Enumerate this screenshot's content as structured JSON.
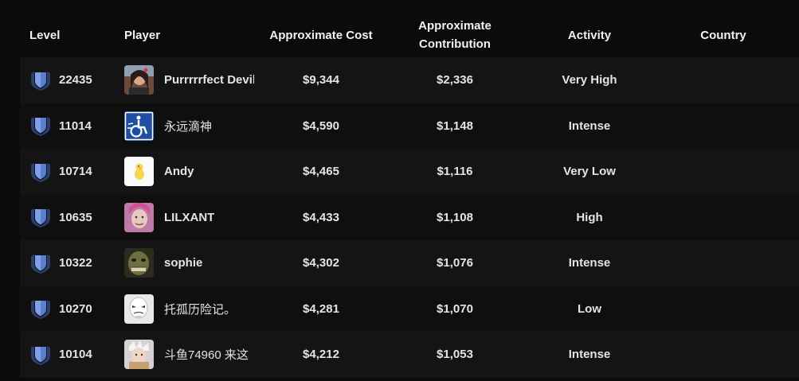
{
  "headers": {
    "level": "Level",
    "player": "Player",
    "cost": "Approximate Cost",
    "contribution_line1": "Approximate",
    "contribution_line2": "Contribution",
    "activity": "Activity",
    "country": "Country"
  },
  "colors": {
    "background": "#0b0b0c",
    "row_odd": "#141415",
    "row_even": "#0f0f10",
    "shield": "#4a6bb5"
  },
  "rows": [
    {
      "level": "22435",
      "player": "Purrrrrfect Devil",
      "cost": "$9,344",
      "contribution": "$2,336",
      "activity": "Very High",
      "country": "",
      "avatar": "girl-photo-avatar"
    },
    {
      "level": "11014",
      "player": "永远滴神",
      "cost": "$4,590",
      "contribution": "$1,148",
      "activity": "Intense",
      "country": "",
      "avatar": "wheelchair-sign-avatar"
    },
    {
      "level": "10714",
      "player": "Andy",
      "cost": "$4,465",
      "contribution": "$1,116",
      "activity": "Very Low",
      "country": "",
      "avatar": "yellow-duck-avatar"
    },
    {
      "level": "10635",
      "player": "LILXANT",
      "cost": "$4,433",
      "contribution": "$1,108",
      "activity": "High",
      "country": "",
      "avatar": "pink-hair-face-avatar"
    },
    {
      "level": "10322",
      "player": "sophie",
      "cost": "$4,302",
      "contribution": "$1,076",
      "activity": "Intense",
      "country": "",
      "avatar": "ogre-face-avatar"
    },
    {
      "level": "10270",
      "player": "托孤历险记。",
      "cost": "$4,281",
      "contribution": "$1,070",
      "activity": "Low",
      "country": "",
      "avatar": "white-mask-avatar"
    },
    {
      "level": "10104",
      "player": "斗鱼74960 来这",
      "cost": "$4,212",
      "contribution": "$1,053",
      "activity": "Intense",
      "country": "",
      "avatar": "anime-character-avatar"
    }
  ]
}
